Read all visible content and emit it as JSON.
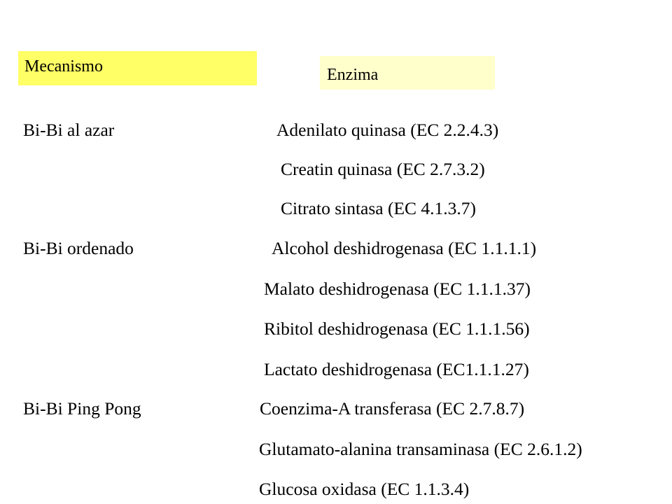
{
  "headers": {
    "mechanism_label": "Mecanismo",
    "mechanism_bg": "#ffff66",
    "enzyme_label": "Enzima",
    "enzyme_bg": "#ffffcc"
  },
  "rows": [
    {
      "mechanism": "Bi-Bi al azar",
      "enzyme": "Adenilato quinasa (EC 2.2.4.3)"
    },
    {
      "mechanism": "",
      "enzyme": "Creatin quinasa (EC 2.7.3.2)"
    },
    {
      "mechanism": "",
      "enzyme": "Citrato sintasa (EC 4.1.3.7)"
    },
    {
      "mechanism": "Bi-Bi ordenado",
      "enzyme": "Alcohol deshidrogenasa (EC 1.1.1.1)"
    },
    {
      "mechanism": "",
      "enzyme": "Malato deshidrogenasa (EC 1.1.1.37)"
    },
    {
      "mechanism": "",
      "enzyme": "Ribitol deshidrogenasa (EC 1.1.1.56)"
    },
    {
      "mechanism": "",
      "enzyme": "Lactato deshidrogenasa (EC1.1.1.27)"
    },
    {
      "mechanism": "Bi-Bi Ping Pong",
      "enzyme": "Coenzima-A transferasa (EC 2.7.8.7)"
    },
    {
      "mechanism": "",
      "enzyme": "Glutamato-alanina transaminasa (EC 2.6.1.2)"
    },
    {
      "mechanism": "",
      "enzyme": "Glucosa oxidasa (EC 1.1.3.4)"
    }
  ]
}
